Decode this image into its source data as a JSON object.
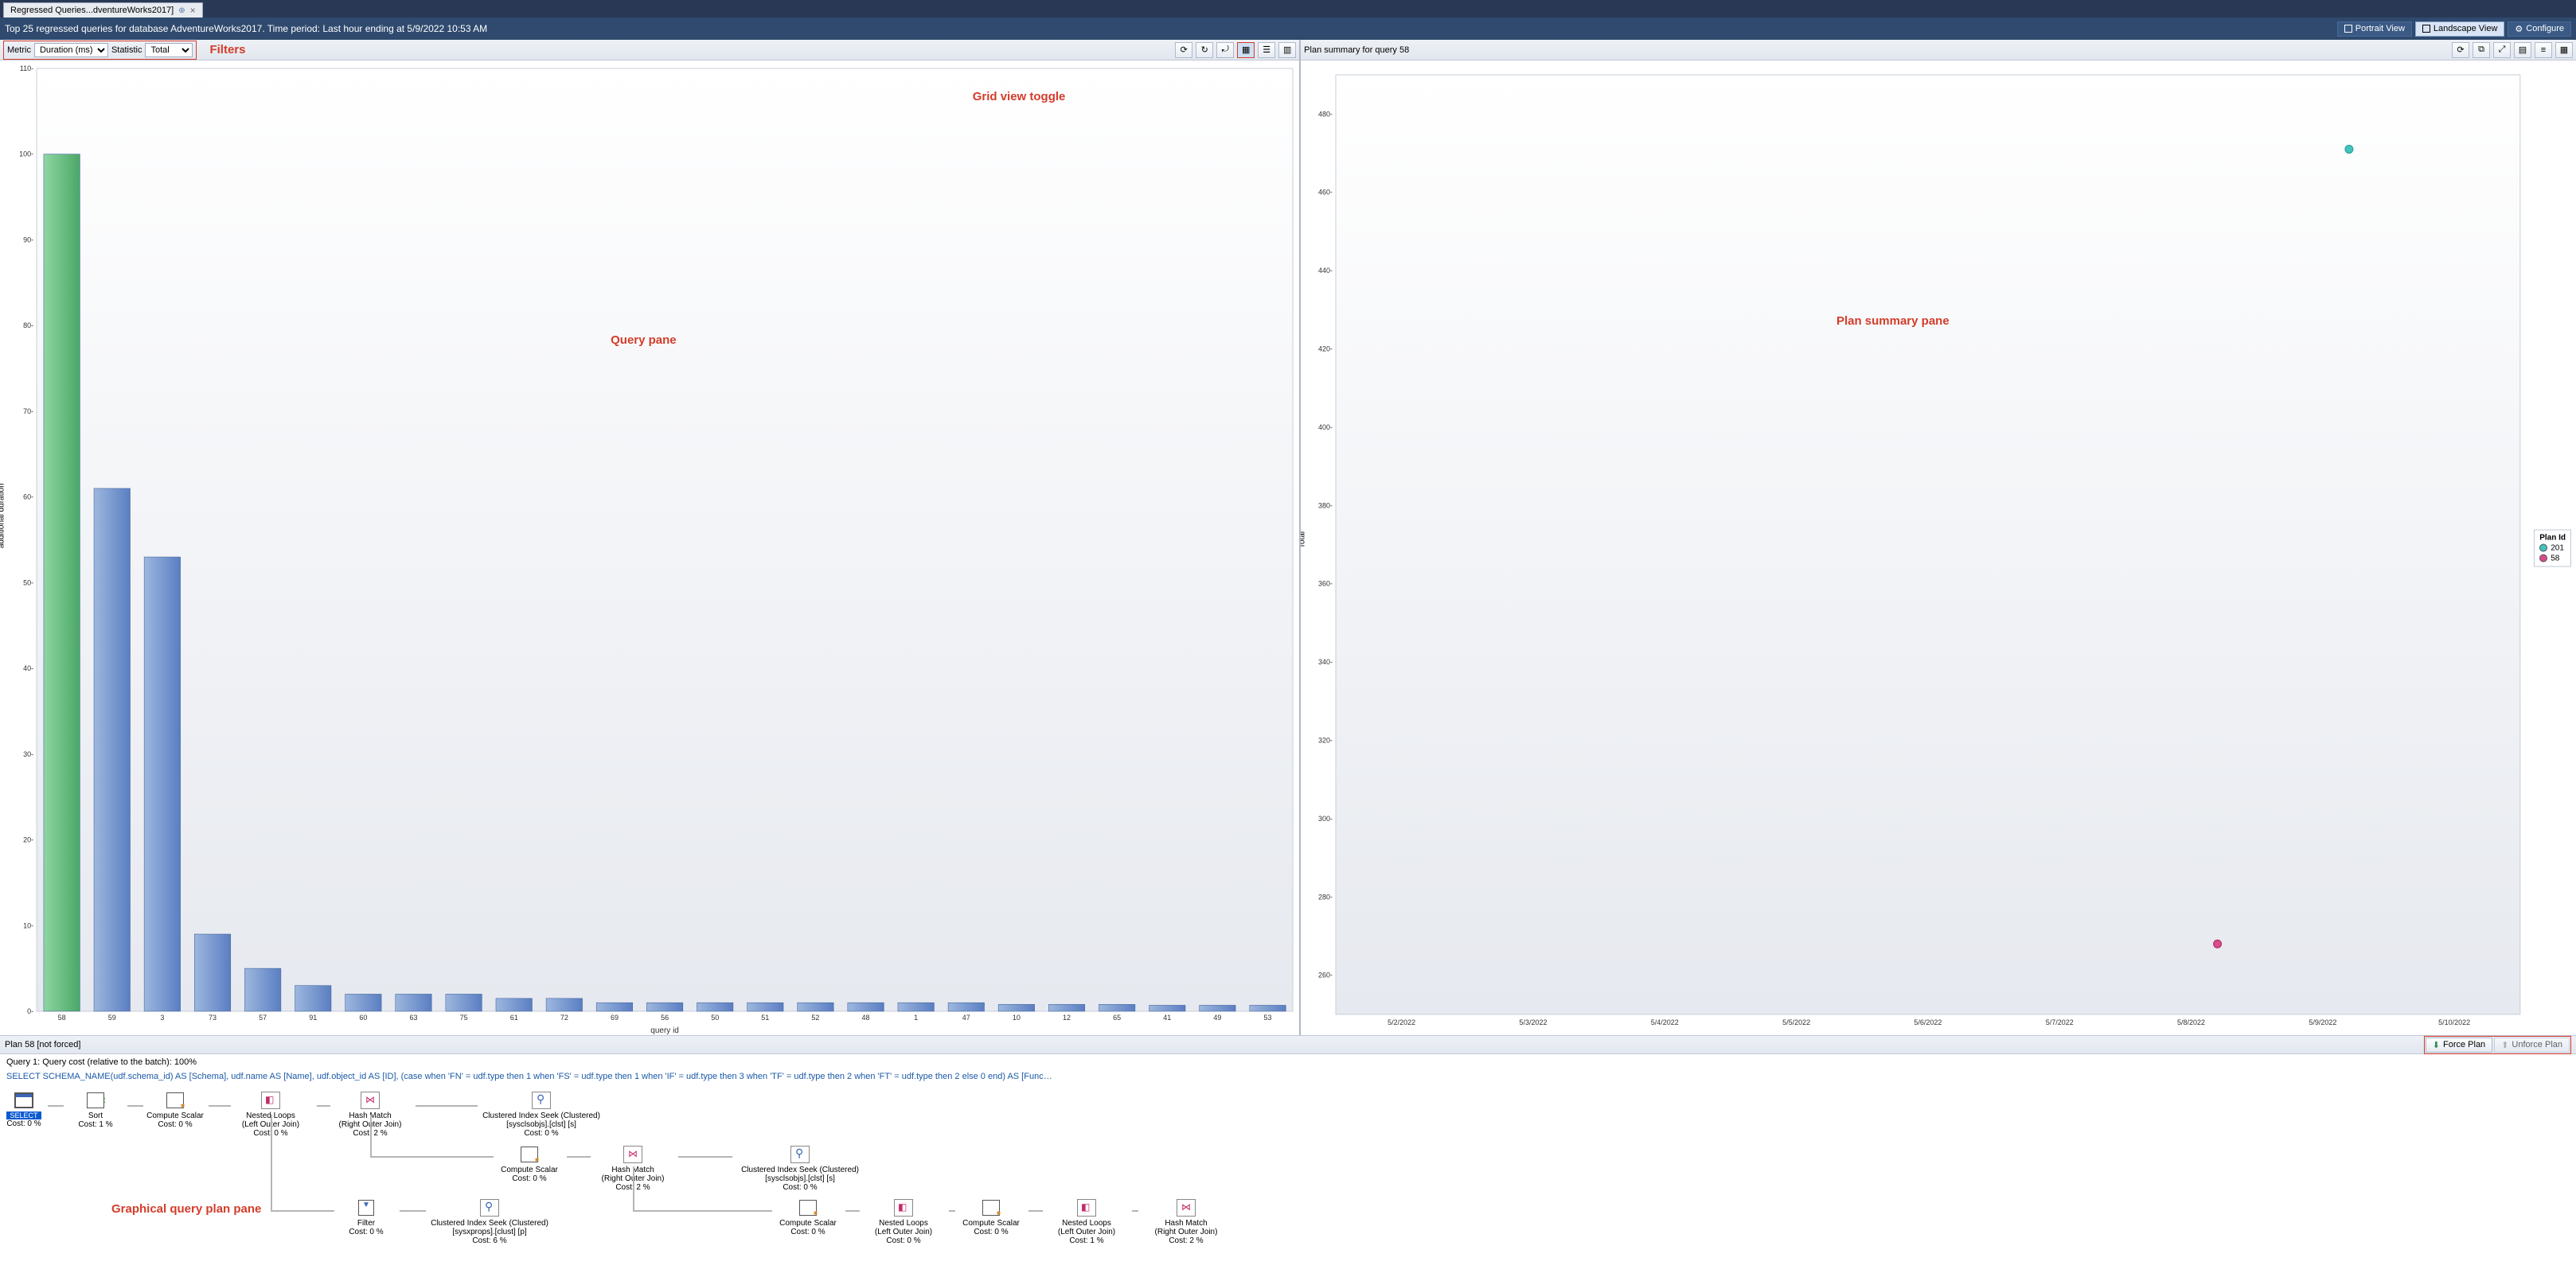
{
  "tab": {
    "title": "Regressed Queries...dventureWorks2017]"
  },
  "title_bar": {
    "text": "Top 25 regressed queries for database AdventureWorks2017. Time period: Last hour ending at 5/9/2022 10:53 AM",
    "portrait_btn": "Portrait View",
    "landscape_btn": "Landscape View",
    "configure_btn": "Configure"
  },
  "filters": {
    "metric_label": "Metric",
    "metric_value": "Duration (ms)",
    "stat_label": "Statistic",
    "stat_value": "Total"
  },
  "annotations": {
    "filters": "Filters",
    "grid_toggle": "Grid view toggle",
    "query_pane": "Query pane",
    "plan_summary_pane": "Plan summary pane",
    "plan_pane": "Graphical query plan pane"
  },
  "query_chart": {
    "type": "bar",
    "y_label": "additional duration",
    "x_label": "query id",
    "y_ticks": [
      0,
      10,
      20,
      30,
      40,
      50,
      60,
      70,
      80,
      90,
      100,
      110
    ],
    "ylim": [
      0,
      110
    ],
    "bg_top": "#ffffff",
    "bg_bot": "#e6e9ef",
    "grid_color": "#dfe4ec",
    "bars": [
      {
        "id": "58",
        "v": 100,
        "c1": "#8fd6a3",
        "c2": "#4aa766"
      },
      {
        "id": "59",
        "v": 61,
        "c1": "#9db7de",
        "c2": "#5a7ec2"
      },
      {
        "id": "3",
        "v": 53,
        "c1": "#9db7de",
        "c2": "#5a7ec2"
      },
      {
        "id": "73",
        "v": 9,
        "c1": "#9db7de",
        "c2": "#5a7ec2"
      },
      {
        "id": "57",
        "v": 5,
        "c1": "#9db7de",
        "c2": "#5a7ec2"
      },
      {
        "id": "91",
        "v": 3,
        "c1": "#9db7de",
        "c2": "#5a7ec2"
      },
      {
        "id": "60",
        "v": 2,
        "c1": "#9db7de",
        "c2": "#5a7ec2"
      },
      {
        "id": "63",
        "v": 2,
        "c1": "#9db7de",
        "c2": "#5a7ec2"
      },
      {
        "id": "75",
        "v": 2,
        "c1": "#9db7de",
        "c2": "#5a7ec2"
      },
      {
        "id": "61",
        "v": 1.5,
        "c1": "#9db7de",
        "c2": "#5a7ec2"
      },
      {
        "id": "72",
        "v": 1.5,
        "c1": "#9db7de",
        "c2": "#5a7ec2"
      },
      {
        "id": "69",
        "v": 1,
        "c1": "#9db7de",
        "c2": "#5a7ec2"
      },
      {
        "id": "56",
        "v": 1,
        "c1": "#9db7de",
        "c2": "#5a7ec2"
      },
      {
        "id": "50",
        "v": 1,
        "c1": "#9db7de",
        "c2": "#5a7ec2"
      },
      {
        "id": "51",
        "v": 1,
        "c1": "#9db7de",
        "c2": "#5a7ec2"
      },
      {
        "id": "52",
        "v": 1,
        "c1": "#9db7de",
        "c2": "#5a7ec2"
      },
      {
        "id": "48",
        "v": 1,
        "c1": "#9db7de",
        "c2": "#5a7ec2"
      },
      {
        "id": "1",
        "v": 1,
        "c1": "#9db7de",
        "c2": "#5a7ec2"
      },
      {
        "id": "47",
        "v": 1,
        "c1": "#9db7de",
        "c2": "#5a7ec2"
      },
      {
        "id": "10",
        "v": 0.8,
        "c1": "#9db7de",
        "c2": "#5a7ec2"
      },
      {
        "id": "12",
        "v": 0.8,
        "c1": "#9db7de",
        "c2": "#5a7ec2"
      },
      {
        "id": "65",
        "v": 0.8,
        "c1": "#9db7de",
        "c2": "#5a7ec2"
      },
      {
        "id": "41",
        "v": 0.7,
        "c1": "#9db7de",
        "c2": "#5a7ec2"
      },
      {
        "id": "49",
        "v": 0.7,
        "c1": "#9db7de",
        "c2": "#5a7ec2"
      },
      {
        "id": "53",
        "v": 0.7,
        "c1": "#9db7de",
        "c2": "#5a7ec2"
      }
    ]
  },
  "plan_summary_toolbar_title": "Plan summary for query 58",
  "plan_chart": {
    "type": "scatter",
    "y_label": "Total",
    "y_ticks": [
      260,
      280,
      300,
      320,
      340,
      360,
      380,
      400,
      420,
      440,
      460,
      480
    ],
    "ylim": [
      250,
      490
    ],
    "x_ticks": [
      "5/2/2022",
      "5/3/2022",
      "5/4/2022",
      "5/5/2022",
      "5/6/2022",
      "5/7/2022",
      "5/8/2022",
      "5/9/2022",
      "5/10/2022"
    ],
    "bg_top": "#ffffff",
    "bg_bot": "#e6e9ef",
    "points": [
      {
        "xi": 7.2,
        "y": 471,
        "color": "#3fc4bf",
        "border": "#2a9a96"
      },
      {
        "xi": 6.2,
        "y": 268,
        "color": "#d94a8a",
        "border": "#a8305f"
      }
    ],
    "legend_title": "Plan Id",
    "legend": [
      {
        "label": "201",
        "color": "#3fc4bf"
      },
      {
        "label": "58",
        "color": "#d94a8a"
      }
    ]
  },
  "plan_bar": {
    "title": "Plan 58 [not forced]",
    "force_btn": "Force Plan",
    "unforce_btn": "Unforce Plan"
  },
  "plan_text": {
    "line1": "Query 1: Query cost (relative to the batch): 100%",
    "line2": "SELECT SCHEMA_NAME(udf.schema_id) AS [Schema], udf.name AS [Name], udf.object_id AS [ID], (case when 'FN' = udf.type then 1 when 'FS' = udf.type then 1 when 'IF' = udf.type then 3 when 'TF' = udf.type then 2 when 'FT' = udf.type then 2 else 0 end) AS [Func…"
  },
  "plan_nodes": {
    "n_select": {
      "t1": "SELECT",
      "t2": "Cost: 0 %"
    },
    "n_sort": {
      "t1": "Sort",
      "t2": "Cost: 1 %"
    },
    "n_cs1": {
      "t1": "Compute Scalar",
      "t2": "Cost: 0 %"
    },
    "n_nl1": {
      "t1": "Nested Loops",
      "t2": "(Left Outer Join)",
      "t3": "Cost: 0 %"
    },
    "n_hm1": {
      "t1": "Hash Match",
      "t2": "(Right Outer Join)",
      "t3": "Cost: 2 %"
    },
    "n_ci1": {
      "t1": "Clustered Index Seek (Clustered)",
      "t2": "[sysclsobjs].[clst] [s]",
      "t3": "Cost: 0 %"
    },
    "n_cs2": {
      "t1": "Compute Scalar",
      "t2": "Cost: 0 %"
    },
    "n_hm2": {
      "t1": "Hash Match",
      "t2": "(Right Outer Join)",
      "t3": "Cost: 2 %"
    },
    "n_ci2": {
      "t1": "Clustered Index Seek (Clustered)",
      "t2": "[sysclsobjs].[clst] [s]",
      "t3": "Cost: 0 %"
    },
    "n_filt": {
      "t1": "Filter",
      "t2": "Cost: 0 %"
    },
    "n_ci3": {
      "t1": "Clustered Index Seek (Clustered)",
      "t2": "[sysxprops].[clust] [p]",
      "t3": "Cost: 6 %"
    },
    "n_cs3": {
      "t1": "Compute Scalar",
      "t2": "Cost: 0 %"
    },
    "n_nl2": {
      "t1": "Nested Loops",
      "t2": "(Left Outer Join)",
      "t3": "Cost: 0 %"
    },
    "n_cs4": {
      "t1": "Compute Scalar",
      "t2": "Cost: 0 %"
    },
    "n_nl3": {
      "t1": "Nested Loops",
      "t2": "(Left Outer Join)",
      "t3": "Cost: 1 %"
    },
    "n_hm3": {
      "t1": "Hash Match",
      "t2": "(Right Outer Join)",
      "t3": "Cost: 2 %"
    }
  }
}
